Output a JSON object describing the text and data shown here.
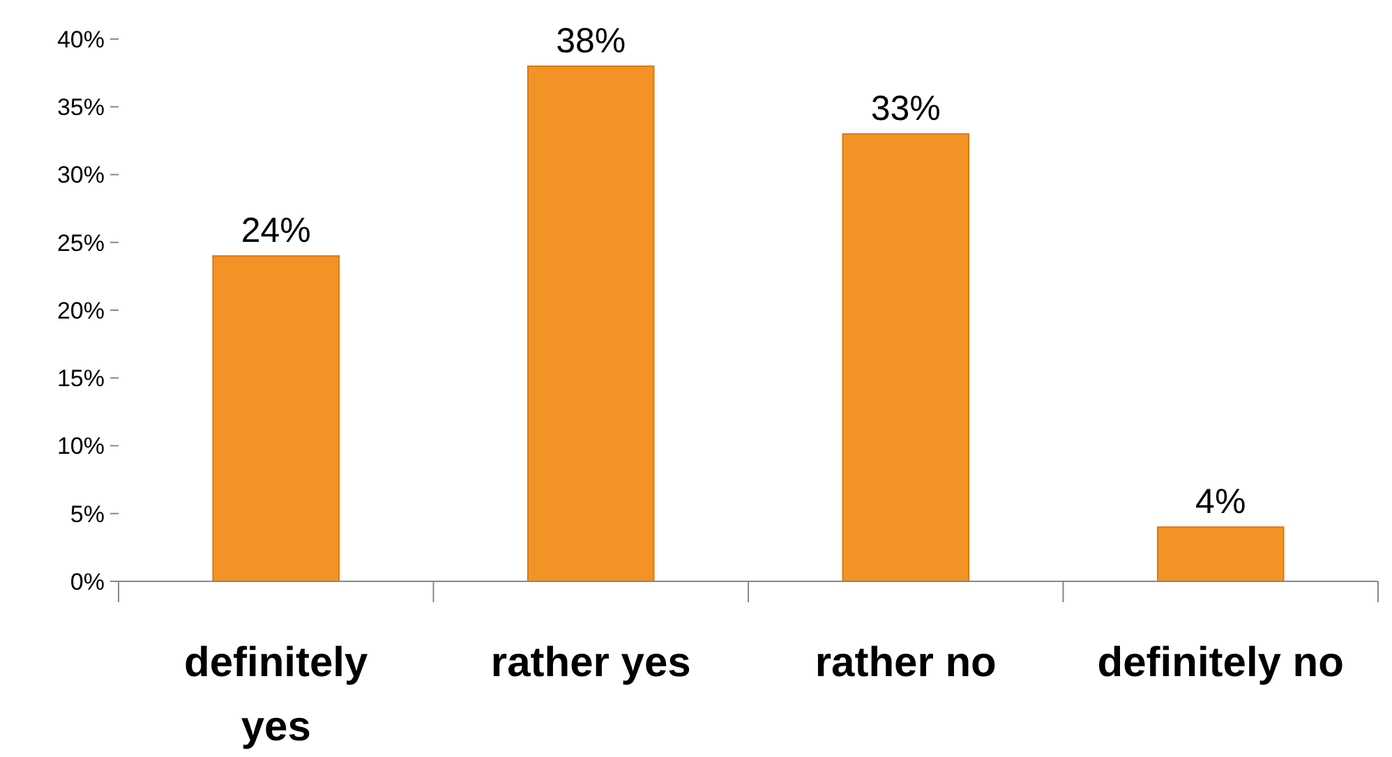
{
  "chart_data": {
    "type": "bar",
    "categories": [
      "definitely yes",
      "rather yes",
      "rather no",
      "definitely no"
    ],
    "values": [
      24,
      38,
      33,
      4
    ],
    "value_labels": [
      "24%",
      "38%",
      "33%",
      "4%"
    ],
    "color": "#f39325",
    "ylim": [
      0,
      40
    ],
    "yticks": [
      {
        "value": 0,
        "label": "0%"
      },
      {
        "value": 5,
        "label": "5%"
      },
      {
        "value": 10,
        "label": "10%"
      },
      {
        "value": 15,
        "label": "15%"
      },
      {
        "value": 20,
        "label": "20%"
      },
      {
        "value": 25,
        "label": "25%"
      },
      {
        "value": 30,
        "label": "30%"
      },
      {
        "value": 35,
        "label": "35%"
      },
      {
        "value": 40,
        "label": "40%"
      }
    ],
    "grid": false
  }
}
